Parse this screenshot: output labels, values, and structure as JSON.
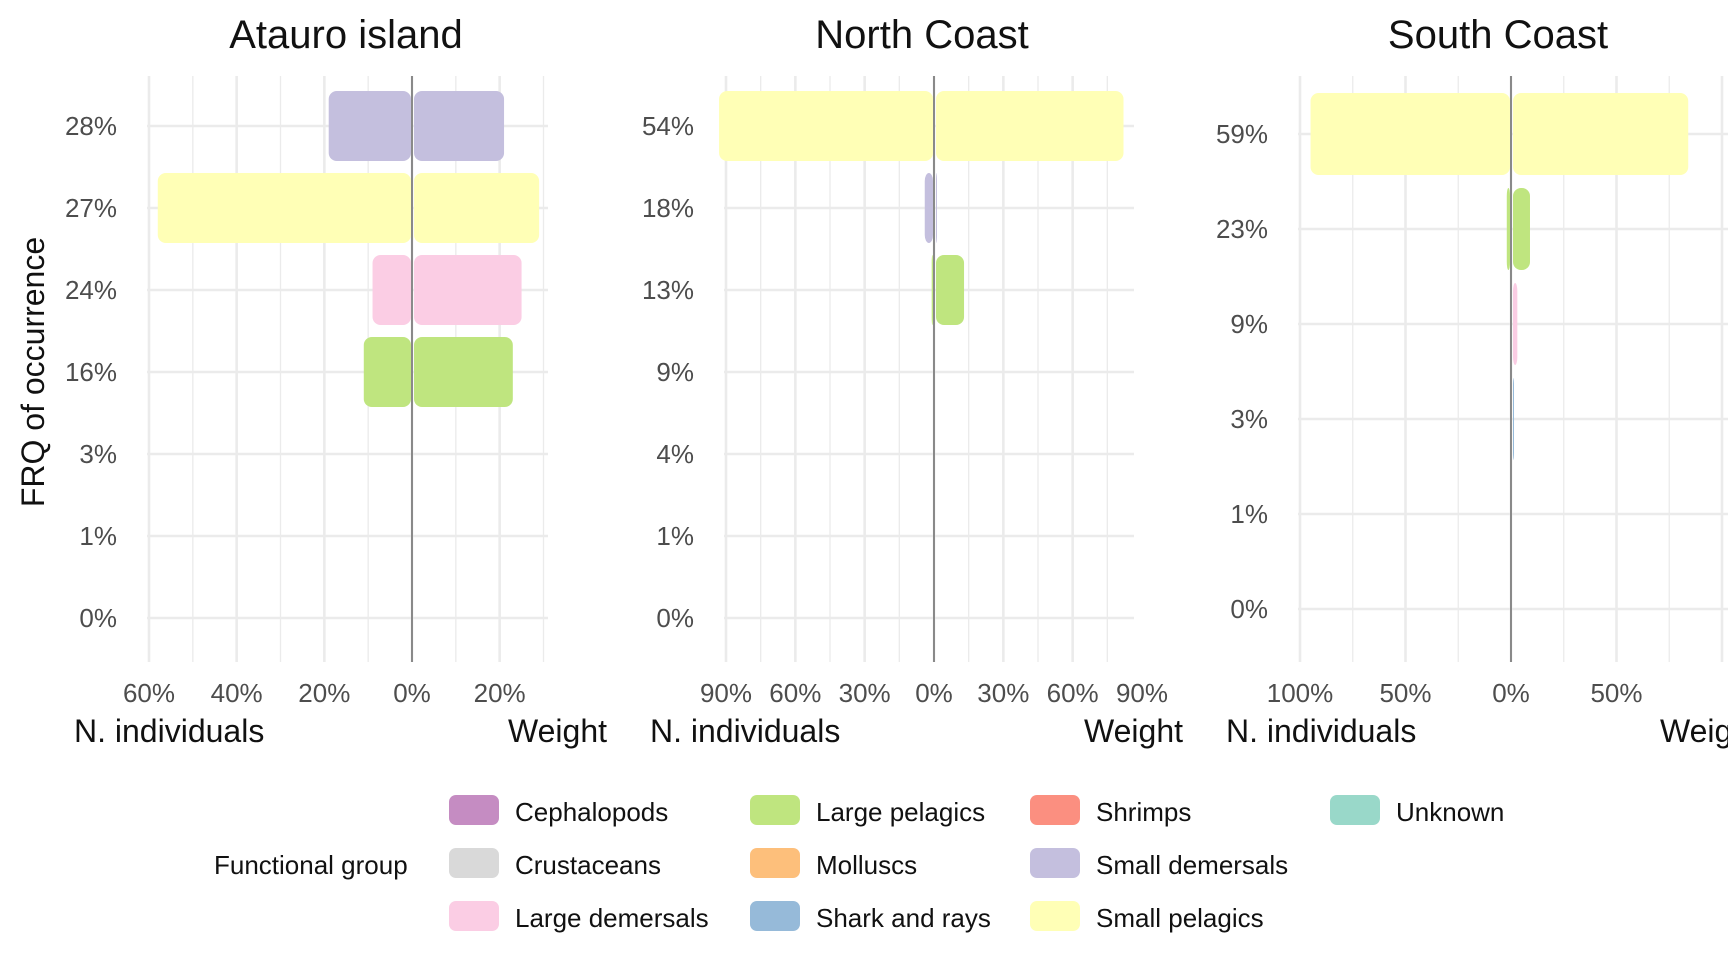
{
  "figure": {
    "ylabel": "FRQ of occurrence",
    "left_axis_word": "N. individuals",
    "right_axis_word": "Weight"
  },
  "legend": {
    "title": "Functional group",
    "items": [
      {
        "label": "Cephalopods",
        "color": "#c58cc2"
      },
      {
        "label": "Crustaceans",
        "color": "#d9d9d9"
      },
      {
        "label": "Large demersals",
        "color": "#fbcde4"
      },
      {
        "label": "Large pelagics",
        "color": "#bfe57f"
      },
      {
        "label": "Molluscs",
        "color": "#fdbf7b"
      },
      {
        "label": "Shark and rays",
        "color": "#96bad9"
      },
      {
        "label": "Shrimps",
        "color": "#fb8f80"
      },
      {
        "label": "Small demersals",
        "color": "#c4bfde"
      },
      {
        "label": "Small pelagics",
        "color": "#ffffb6"
      },
      {
        "label": "Unknown",
        "color": "#99d8c9"
      }
    ]
  },
  "chart_data": [
    {
      "type": "bar",
      "orientation": "horizontal-diverging",
      "title": "Atauro island",
      "xlabel_left": "N. individuals",
      "xlabel_right": "Weight",
      "ylabel": "FRQ of occurrence",
      "xlim": [
        -60,
        30
      ],
      "x_ticks": [
        -60,
        -40,
        -20,
        0,
        20
      ],
      "x_tick_labels": [
        "60%",
        "40%",
        "20%",
        "0%",
        "20%"
      ],
      "categories": [
        "28%",
        "27%",
        "24%",
        "16%",
        "3%",
        "1%",
        "0%"
      ],
      "series": [
        {
          "group": "Small demersals",
          "category": "28%",
          "n_individuals": 19,
          "weight": 21,
          "color": "#c4bfde"
        },
        {
          "group": "Small pelagics",
          "category": "27%",
          "n_individuals": 58,
          "weight": 29,
          "color": "#ffffb6"
        },
        {
          "group": "Large demersals",
          "category": "24%",
          "n_individuals": 9,
          "weight": 25,
          "color": "#fbcde4"
        },
        {
          "group": "Large pelagics",
          "category": "16%",
          "n_individuals": 11,
          "weight": 23,
          "color": "#bfe57f"
        }
      ]
    },
    {
      "type": "bar",
      "orientation": "horizontal-diverging",
      "title": "North Coast",
      "xlabel_left": "N. individuals",
      "xlabel_right": "Weight",
      "ylabel": "FRQ of occurrence",
      "xlim": [
        -90,
        90
      ],
      "x_ticks": [
        -90,
        -60,
        -30,
        0,
        30,
        60,
        90
      ],
      "x_tick_labels": [
        "90%",
        "60%",
        "30%",
        "0%",
        "30%",
        "60%",
        "90%"
      ],
      "categories": [
        "54%",
        "18%",
        "13%",
        "9%",
        "4%",
        "1%",
        "0%"
      ],
      "series": [
        {
          "group": "Small pelagics",
          "category": "54%",
          "n_individuals": 93,
          "weight": 82,
          "color": "#ffffb6"
        },
        {
          "group": "Small demersals",
          "category": "18%",
          "n_individuals": 4,
          "weight": 1,
          "color": "#c4bfde"
        },
        {
          "group": "Large pelagics",
          "category": "13%",
          "n_individuals": 1,
          "weight": 13,
          "color": "#bfe57f"
        }
      ]
    },
    {
      "type": "bar",
      "orientation": "horizontal-diverging",
      "title": "South Coast",
      "xlabel_left": "N. individuals",
      "xlabel_right": "Weight",
      "ylabel": "FRQ of occurrence",
      "xlim": [
        -100,
        80
      ],
      "x_ticks": [
        -100,
        -50,
        0,
        50
      ],
      "x_tick_labels": [
        "100%",
        "50%",
        "0%",
        "50%"
      ],
      "categories": [
        "59%",
        "23%",
        "9%",
        "3%",
        "1%",
        "0%"
      ],
      "series": [
        {
          "group": "Small pelagics",
          "category": "59%",
          "n_individuals": 95,
          "weight": 84,
          "color": "#ffffb6"
        },
        {
          "group": "Large pelagics",
          "category": "23%",
          "n_individuals": 2,
          "weight": 9,
          "color": "#bfe57f"
        },
        {
          "group": "Large demersals",
          "category": "9%",
          "n_individuals": 0,
          "weight": 3,
          "color": "#fbcde4"
        },
        {
          "group": "Shark and rays",
          "category": "3%",
          "n_individuals": 0,
          "weight": 1,
          "color": "#96bad9"
        }
      ]
    }
  ]
}
